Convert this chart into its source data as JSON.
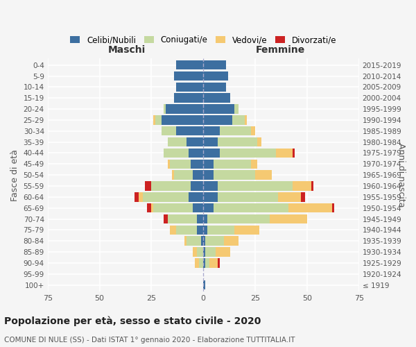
{
  "age_groups": [
    "100+",
    "95-99",
    "90-94",
    "85-89",
    "80-84",
    "75-79",
    "70-74",
    "65-69",
    "60-64",
    "55-59",
    "50-54",
    "45-49",
    "40-44",
    "35-39",
    "30-34",
    "25-29",
    "20-24",
    "15-19",
    "10-14",
    "5-9",
    "0-4"
  ],
  "birth_years": [
    "≤ 1919",
    "1920-1924",
    "1925-1929",
    "1930-1934",
    "1935-1939",
    "1940-1944",
    "1945-1949",
    "1950-1954",
    "1955-1959",
    "1960-1964",
    "1965-1969",
    "1970-1974",
    "1975-1979",
    "1980-1984",
    "1985-1989",
    "1990-1994",
    "1995-1999",
    "2000-2004",
    "2005-2009",
    "2010-2014",
    "2015-2019"
  ],
  "male": {
    "celibe": [
      0,
      0,
      0,
      0,
      1,
      3,
      3,
      5,
      7,
      6,
      5,
      6,
      7,
      8,
      13,
      20,
      18,
      14,
      13,
      14,
      13
    ],
    "coniugato": [
      0,
      0,
      2,
      3,
      7,
      10,
      14,
      19,
      22,
      19,
      9,
      10,
      12,
      9,
      7,
      3,
      1,
      0,
      0,
      0,
      0
    ],
    "vedovo": [
      0,
      0,
      2,
      2,
      1,
      3,
      0,
      1,
      2,
      0,
      1,
      1,
      0,
      0,
      0,
      1,
      0,
      0,
      0,
      0,
      0
    ],
    "divorziato": [
      0,
      0,
      0,
      0,
      0,
      0,
      2,
      2,
      2,
      3,
      0,
      0,
      0,
      0,
      0,
      0,
      0,
      0,
      0,
      0,
      0
    ]
  },
  "female": {
    "nubile": [
      1,
      0,
      1,
      1,
      1,
      2,
      2,
      5,
      7,
      7,
      5,
      5,
      8,
      7,
      8,
      14,
      15,
      13,
      11,
      12,
      11
    ],
    "coniugata": [
      0,
      0,
      2,
      5,
      9,
      13,
      30,
      36,
      29,
      36,
      20,
      18,
      27,
      19,
      15,
      6,
      2,
      0,
      0,
      0,
      0
    ],
    "vedova": [
      0,
      0,
      4,
      7,
      7,
      12,
      18,
      21,
      11,
      9,
      8,
      3,
      8,
      2,
      2,
      1,
      0,
      0,
      0,
      0,
      0
    ],
    "divorziata": [
      0,
      0,
      1,
      0,
      0,
      0,
      0,
      1,
      2,
      1,
      0,
      0,
      1,
      0,
      0,
      0,
      0,
      0,
      0,
      0,
      0
    ]
  },
  "colors": {
    "celibe": "#3d6fa0",
    "coniugato": "#c5d9a0",
    "vedovo": "#f5c972",
    "divorziato": "#cc2222"
  },
  "xlim": 75,
  "title": "Popolazione per età, sesso e stato civile - 2020",
  "subtitle": "COMUNE DI NULE (SS) - Dati ISTAT 1° gennaio 2020 - Elaborazione TUTTITALIA.IT",
  "ylabel_left": "Fasce di età",
  "ylabel_right": "Anni di nascita",
  "xlabel_left": "Maschi",
  "xlabel_right": "Femmine",
  "bg_color": "#f5f5f5",
  "grid_color": "#ffffff",
  "bar_height": 0.85
}
